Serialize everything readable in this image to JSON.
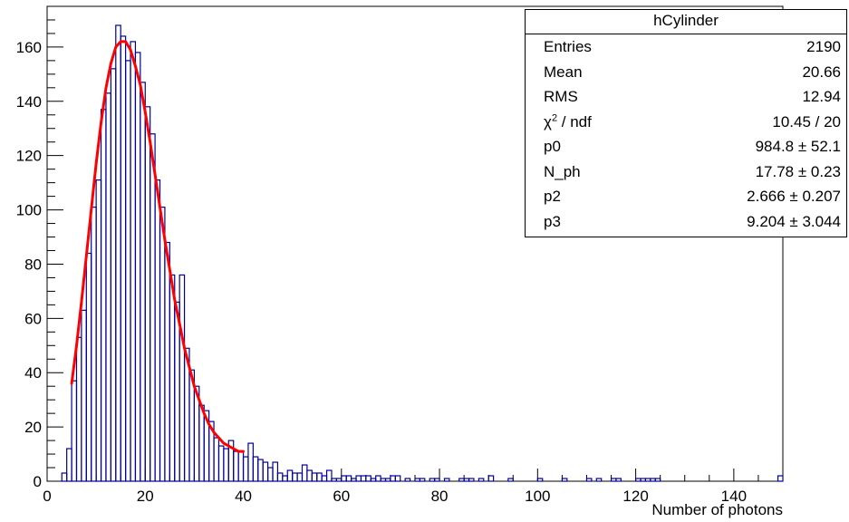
{
  "chart_data": {
    "type": "histogram",
    "histogram_name": "hCylinder",
    "xlabel": "Number of photons",
    "ylabel": "",
    "xlim": [
      0,
      150
    ],
    "ylim": [
      0,
      175
    ],
    "x_ticks": [
      0,
      20,
      40,
      60,
      80,
      100,
      120,
      140
    ],
    "y_ticks": [
      0,
      20,
      40,
      60,
      80,
      100,
      120,
      140,
      160
    ],
    "bin_width": 1,
    "bins": [
      {
        "x": 3,
        "y": 3
      },
      {
        "x": 4,
        "y": 12
      },
      {
        "x": 5,
        "y": 37
      },
      {
        "x": 6,
        "y": 53
      },
      {
        "x": 7,
        "y": 63
      },
      {
        "x": 8,
        "y": 84
      },
      {
        "x": 9,
        "y": 101
      },
      {
        "x": 10,
        "y": 111
      },
      {
        "x": 11,
        "y": 137
      },
      {
        "x": 12,
        "y": 143
      },
      {
        "x": 13,
        "y": 152
      },
      {
        "x": 14,
        "y": 168
      },
      {
        "x": 15,
        "y": 164
      },
      {
        "x": 16,
        "y": 155
      },
      {
        "x": 17,
        "y": 162
      },
      {
        "x": 18,
        "y": 158
      },
      {
        "x": 19,
        "y": 147
      },
      {
        "x": 20,
        "y": 138
      },
      {
        "x": 21,
        "y": 128
      },
      {
        "x": 22,
        "y": 111
      },
      {
        "x": 23,
        "y": 101
      },
      {
        "x": 24,
        "y": 88
      },
      {
        "x": 25,
        "y": 76
      },
      {
        "x": 26,
        "y": 66
      },
      {
        "x": 27,
        "y": 76
      },
      {
        "x": 28,
        "y": 49
      },
      {
        "x": 29,
        "y": 41
      },
      {
        "x": 30,
        "y": 35
      },
      {
        "x": 31,
        "y": 28
      },
      {
        "x": 32,
        "y": 26
      },
      {
        "x": 33,
        "y": 22
      },
      {
        "x": 34,
        "y": 16
      },
      {
        "x": 35,
        "y": 13
      },
      {
        "x": 36,
        "y": 12
      },
      {
        "x": 37,
        "y": 15
      },
      {
        "x": 38,
        "y": 11
      },
      {
        "x": 39,
        "y": 11
      },
      {
        "x": 40,
        "y": 9
      },
      {
        "x": 41,
        "y": 14
      },
      {
        "x": 42,
        "y": 9
      },
      {
        "x": 43,
        "y": 8
      },
      {
        "x": 44,
        "y": 7
      },
      {
        "x": 45,
        "y": 5
      },
      {
        "x": 46,
        "y": 7
      },
      {
        "x": 47,
        "y": 3
      },
      {
        "x": 48,
        "y": 2
      },
      {
        "x": 49,
        "y": 4
      },
      {
        "x": 50,
        "y": 3
      },
      {
        "x": 51,
        "y": 3
      },
      {
        "x": 52,
        "y": 6
      },
      {
        "x": 53,
        "y": 4
      },
      {
        "x": 54,
        "y": 3
      },
      {
        "x": 55,
        "y": 3
      },
      {
        "x": 56,
        "y": 2
      },
      {
        "x": 57,
        "y": 4
      },
      {
        "x": 58,
        "y": 1
      },
      {
        "x": 59,
        "y": 1
      },
      {
        "x": 60,
        "y": 2
      },
      {
        "x": 61,
        "y": 2
      },
      {
        "x": 62,
        "y": 1
      },
      {
        "x": 63,
        "y": 2
      },
      {
        "x": 64,
        "y": 2
      },
      {
        "x": 65,
        "y": 2
      },
      {
        "x": 66,
        "y": 1
      },
      {
        "x": 67,
        "y": 2
      },
      {
        "x": 68,
        "y": 1
      },
      {
        "x": 69,
        "y": 1
      },
      {
        "x": 70,
        "y": 2
      },
      {
        "x": 71,
        "y": 2
      },
      {
        "x": 73,
        "y": 1
      },
      {
        "x": 75,
        "y": 1
      },
      {
        "x": 76,
        "y": 1
      },
      {
        "x": 78,
        "y": 1
      },
      {
        "x": 79,
        "y": 1
      },
      {
        "x": 81,
        "y": 1
      },
      {
        "x": 84,
        "y": 1
      },
      {
        "x": 85,
        "y": 1
      },
      {
        "x": 86,
        "y": 1
      },
      {
        "x": 88,
        "y": 1
      },
      {
        "x": 90,
        "y": 2
      },
      {
        "x": 94,
        "y": 1
      },
      {
        "x": 100,
        "y": 1
      },
      {
        "x": 105,
        "y": 1
      },
      {
        "x": 110,
        "y": 1
      },
      {
        "x": 112,
        "y": 1
      },
      {
        "x": 115,
        "y": 1
      },
      {
        "x": 116,
        "y": 1
      },
      {
        "x": 120,
        "y": 1
      },
      {
        "x": 121,
        "y": 1
      },
      {
        "x": 122,
        "y": 1
      },
      {
        "x": 123,
        "y": 1
      },
      {
        "x": 124,
        "y": 1
      },
      {
        "x": 149,
        "y": 2
      }
    ],
    "fit": {
      "x_range": [
        5,
        40
      ],
      "points": [
        {
          "x": 5,
          "y": 36
        },
        {
          "x": 6,
          "y": 50
        },
        {
          "x": 7,
          "y": 66
        },
        {
          "x": 8,
          "y": 83
        },
        {
          "x": 9,
          "y": 100
        },
        {
          "x": 10,
          "y": 117
        },
        {
          "x": 11,
          "y": 132
        },
        {
          "x": 12,
          "y": 145
        },
        {
          "x": 13,
          "y": 154
        },
        {
          "x": 14,
          "y": 160
        },
        {
          "x": 15,
          "y": 162
        },
        {
          "x": 16,
          "y": 162
        },
        {
          "x": 17,
          "y": 159
        },
        {
          "x": 18,
          "y": 153
        },
        {
          "x": 19,
          "y": 146
        },
        {
          "x": 20,
          "y": 136
        },
        {
          "x": 21,
          "y": 125
        },
        {
          "x": 22,
          "y": 113
        },
        {
          "x": 23,
          "y": 101
        },
        {
          "x": 24,
          "y": 89
        },
        {
          "x": 25,
          "y": 78
        },
        {
          "x": 26,
          "y": 67
        },
        {
          "x": 27,
          "y": 58
        },
        {
          "x": 28,
          "y": 49
        },
        {
          "x": 29,
          "y": 42
        },
        {
          "x": 30,
          "y": 35
        },
        {
          "x": 31,
          "y": 30
        },
        {
          "x": 32,
          "y": 25
        },
        {
          "x": 33,
          "y": 21
        },
        {
          "x": 34,
          "y": 18
        },
        {
          "x": 35,
          "y": 16
        },
        {
          "x": 36,
          "y": 14
        },
        {
          "x": 37,
          "y": 13
        },
        {
          "x": 38,
          "y": 12
        },
        {
          "x": 39,
          "y": 11
        },
        {
          "x": 40,
          "y": 11
        }
      ]
    },
    "stats_box": {
      "title": "hCylinder",
      "rows": [
        {
          "label": "Entries",
          "value": "2190"
        },
        {
          "label": "Mean",
          "value": "20.66"
        },
        {
          "label": "RMS",
          "value": "12.94"
        },
        {
          "label": "χ",
          "label_sup": "2",
          "label_suffix": " / ndf",
          "value": "10.45 / 20"
        },
        {
          "label": "p0",
          "value": "984.8 ± 52.1"
        },
        {
          "label": "N_ph",
          "value": "17.78 ± 0.23"
        },
        {
          "label": "p2",
          "value": "2.666 ± 0.207"
        },
        {
          "label": "p3",
          "value": "9.204 ± 3.044"
        }
      ]
    },
    "colors": {
      "histogram": "#000099",
      "fit": "#ff0000",
      "axes": "#000000"
    },
    "grid": false,
    "legend": "stats box top-right"
  }
}
